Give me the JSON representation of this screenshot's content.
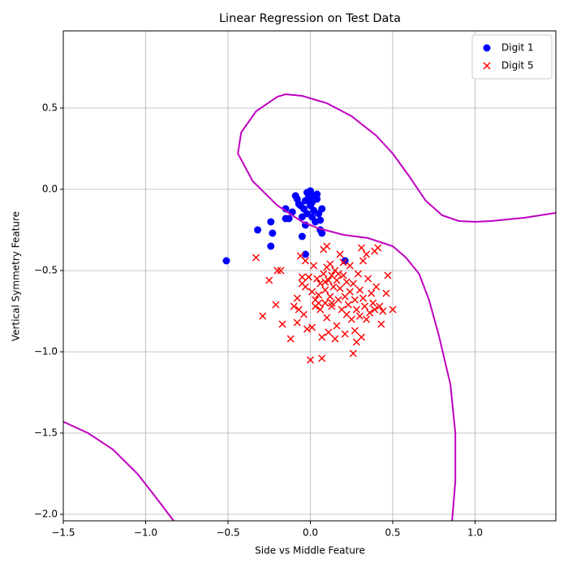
{
  "chart_data": {
    "type": "scatter",
    "title": "Linear Regression on Test Data",
    "x_label": "Side vs Middle Feature",
    "y_label": "Vertical Symmetry Feature",
    "xlim": [
      -1.5,
      1.49
    ],
    "ylim": [
      -2.04,
      0.975
    ],
    "xticks": [
      {
        "value": -1.5,
        "label": "−1.5"
      },
      {
        "value": -1,
        "label": "−1.0"
      },
      {
        "value": -0.5,
        "label": "−0.5"
      },
      {
        "value": 0,
        "label": "0.0"
      },
      0.5,
      {
        "value": 1,
        "label": "1.0"
      }
    ],
    "yticks": [
      {
        "value": -2,
        "label": "−2.0"
      },
      {
        "value": -1.5,
        "label": "−1.5"
      },
      {
        "value": -1,
        "label": "−1.0"
      },
      {
        "value": -0.5,
        "label": "−0.5"
      },
      {
        "value": 0,
        "label": "0.0"
      },
      0.5
    ],
    "grid": true,
    "legend": "upper right",
    "series": [
      {
        "name": "Digit 1",
        "color": "#0000ff",
        "marker": "circle",
        "x": [
          -0.51,
          -0.32,
          -0.24,
          -0.23,
          -0.24,
          -0.15,
          -0.15,
          -0.13,
          -0.11,
          -0.09,
          -0.08,
          -0.06,
          -0.05,
          -0.05,
          -0.03,
          -0.03,
          -0.02,
          -0.01,
          0,
          0.01,
          0.02,
          0.03,
          0.04,
          0.05,
          0.06,
          0.06,
          0.07,
          0.07,
          -0.04,
          -0.07,
          0,
          0.02,
          -0.03,
          0.01,
          -0.02,
          0.21,
          0.04
        ],
        "values": [
          -0.44,
          -0.25,
          -0.35,
          -0.27,
          -0.2,
          -0.12,
          -0.18,
          -0.18,
          -0.14,
          -0.04,
          -0.06,
          -0.1,
          -0.17,
          -0.29,
          -0.4,
          -0.22,
          -0.02,
          -0.05,
          -0.01,
          -0.08,
          -0.13,
          -0.2,
          -0.06,
          -0.15,
          -0.19,
          -0.25,
          -0.27,
          -0.12,
          -0.12,
          -0.09,
          -0.1,
          -0.04,
          -0.07,
          -0.17,
          -0.15,
          -0.44,
          -0.03
        ]
      },
      {
        "name": "Digit 5",
        "color": "#ff0000",
        "marker": "x",
        "x": [
          -0.33,
          -0.29,
          -0.25,
          -0.21,
          -0.2,
          -0.18,
          -0.17,
          -0.12,
          -0.1,
          -0.08,
          -0.08,
          -0.07,
          -0.06,
          -0.05,
          -0.05,
          -0.04,
          -0.03,
          -0.03,
          -0.02,
          -0.01,
          0,
          0.01,
          0.01,
          0.02,
          0.03,
          0.03,
          0.04,
          0.05,
          0.06,
          0.06,
          0.07,
          0.07,
          0.08,
          0.08,
          0.09,
          0.09,
          0.1,
          0.1,
          0.1,
          0.11,
          0.11,
          0.12,
          0.12,
          0.13,
          0.13,
          0.14,
          0.15,
          0.15,
          0.16,
          0.16,
          0.17,
          0.18,
          0.18,
          0.19,
          0.2,
          0.2,
          0.21,
          0.21,
          0.22,
          0.22,
          0.23,
          0.24,
          0.24,
          0.25,
          0.26,
          0.27,
          0.27,
          0.28,
          0.28,
          0.29,
          0.3,
          0.3,
          0.31,
          0.31,
          0.32,
          0.32,
          0.33,
          0.34,
          0.35,
          0.36,
          0.37,
          0.38,
          0.39,
          0.39,
          0.4,
          0.41,
          0.42,
          0.43,
          0.44,
          0.46,
          0.47,
          0.5,
          0.13,
          0.05,
          0.17,
          0.26,
          0.34,
          0.09
        ],
        "values": [
          -0.42,
          -0.78,
          -0.56,
          -0.71,
          -0.5,
          -0.5,
          -0.83,
          -0.92,
          -0.72,
          -0.67,
          -0.82,
          -0.74,
          -0.41,
          -0.54,
          -0.58,
          -0.77,
          -0.44,
          -0.6,
          -0.86,
          -0.54,
          -1.05,
          -0.63,
          -0.85,
          -0.47,
          -0.68,
          -0.72,
          -0.55,
          -0.65,
          -0.58,
          -0.74,
          -0.91,
          -1.04,
          -0.37,
          -0.52,
          -0.62,
          -0.7,
          -0.35,
          -0.48,
          -0.79,
          -0.56,
          -0.88,
          -0.46,
          -0.66,
          -0.53,
          -0.72,
          -0.6,
          -0.5,
          -0.92,
          -0.84,
          -0.56,
          -0.68,
          -0.4,
          -0.61,
          -0.74,
          -0.45,
          -0.53,
          -0.66,
          -0.89,
          -0.57,
          -0.77,
          -0.71,
          -0.47,
          -0.63,
          -0.8,
          -1.01,
          -0.68,
          -0.87,
          -0.94,
          -0.74,
          -0.52,
          -0.62,
          -0.78,
          -0.36,
          -0.91,
          -0.44,
          -0.67,
          -0.72,
          -0.4,
          -0.55,
          -0.76,
          -0.64,
          -0.7,
          -0.38,
          -0.74,
          -0.6,
          -0.36,
          -0.72,
          -0.83,
          -0.75,
          -0.64,
          -0.53,
          -0.74,
          -0.7,
          -0.7,
          -0.52,
          -0.58,
          -0.8,
          -0.57
        ]
      }
    ],
    "boundary": {
      "color": "#bf00bf",
      "x": [
        0.86,
        0.88,
        0.88,
        0.85,
        0.78,
        0.72,
        0.66,
        0.58,
        0.5,
        0.35,
        0.2,
        0.05,
        -0.05,
        -0.2,
        -0.35,
        -0.44,
        -0.42,
        -0.33,
        -0.2,
        -0.15,
        -0.05,
        0.1,
        0.25,
        0.4,
        0.5,
        0.6,
        0.7,
        0.8,
        0.9,
        1.0,
        1.1,
        1.3,
        1.49,
        null,
        -1.5,
        -1.35,
        -1.2,
        -1.05,
        -0.95,
        -0.83
      ],
      "values": [
        -2.04,
        -1.8,
        -1.5,
        -1.2,
        -0.9,
        -0.68,
        -0.52,
        -0.42,
        -0.35,
        -0.3,
        -0.28,
        -0.24,
        -0.2,
        -0.1,
        0.05,
        0.22,
        0.35,
        0.48,
        0.57,
        0.585,
        0.575,
        0.53,
        0.45,
        0.33,
        0.22,
        0.08,
        -0.07,
        -0.16,
        -0.195,
        -0.2,
        -0.195,
        -0.175,
        -0.145,
        null,
        -1.43,
        -1.5,
        -1.6,
        -1.75,
        -1.88,
        -2.04
      ]
    }
  }
}
